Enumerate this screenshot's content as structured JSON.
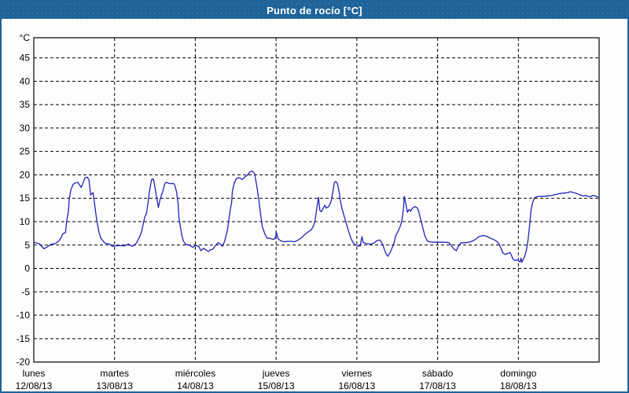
{
  "window": {
    "title": "Punto de rocío [°C]"
  },
  "colors": {
    "titlebar_bg": "#1e6399",
    "titlebar_text": "#ffffff",
    "frame_border": "#1e6399",
    "plot_border": "#000000",
    "gridline": "#000000",
    "axis_text": "#000000",
    "series_line": "#2222bb",
    "background": "#fdfdfd"
  },
  "chart_data": {
    "type": "line",
    "title": "Punto de rocío [°C]",
    "y_unit_label": "°C",
    "ylim": [
      -20,
      49.3
    ],
    "y_ticks": [
      45,
      40,
      35,
      30,
      25,
      20,
      15,
      10,
      5,
      0,
      -5,
      -10,
      -15,
      -20
    ],
    "x_range_hours": [
      0,
      168
    ],
    "x_day_width_hours": 24,
    "grid": "dashed",
    "legend_position": "none",
    "days": [
      {
        "name": "lunes",
        "date": "12/08/13"
      },
      {
        "name": "martes",
        "date": "13/08/13"
      },
      {
        "name": "miércoles",
        "date": "14/08/13"
      },
      {
        "name": "jueves",
        "date": "15/08/13"
      },
      {
        "name": "viernes",
        "date": "16/08/13"
      },
      {
        "name": "sábado",
        "date": "17/08/13"
      },
      {
        "name": "domingo",
        "date": "18/08/13"
      }
    ],
    "series": [
      {
        "name": "Punto de rocío",
        "color": "#2222bb",
        "points": [
          [
            0,
            5.6
          ],
          [
            1.6,
            5.3
          ],
          [
            3,
            4.2
          ],
          [
            4,
            4.6
          ],
          [
            5.2,
            5.2
          ],
          [
            6.3,
            5.3
          ],
          [
            7.5,
            5.9
          ],
          [
            8.2,
            6.7
          ],
          [
            8.7,
            7.5
          ],
          [
            9.4,
            7.6
          ],
          [
            9.8,
            10.2
          ],
          [
            10.3,
            12.3
          ],
          [
            10.5,
            14.5
          ],
          [
            11,
            16.8
          ],
          [
            11.7,
            18
          ],
          [
            12.4,
            18.3
          ],
          [
            13.1,
            18.4
          ],
          [
            14.1,
            17.3
          ],
          [
            14.8,
            18.6
          ],
          [
            15.2,
            19.4
          ],
          [
            15.9,
            19.5
          ],
          [
            16.4,
            18.9
          ],
          [
            16.9,
            15.7
          ],
          [
            17.6,
            16.2
          ],
          [
            18.3,
            12.5
          ],
          [
            18.7,
            10.3
          ],
          [
            19.4,
            7.7
          ],
          [
            19.9,
            6.5
          ],
          [
            21.1,
            5.4
          ],
          [
            22.5,
            5.2
          ],
          [
            23.4,
            4.7
          ],
          [
            24.1,
            4.8
          ],
          [
            25.5,
            4.9
          ],
          [
            26.9,
            4.8
          ],
          [
            28.1,
            5.2
          ],
          [
            29.3,
            4.7
          ],
          [
            30.5,
            5.4
          ],
          [
            31.6,
            7
          ],
          [
            32.1,
            8.1
          ],
          [
            32.6,
            9.8
          ],
          [
            33,
            11
          ],
          [
            33.5,
            11.8
          ],
          [
            34,
            14.4
          ],
          [
            34.4,
            16.6
          ],
          [
            34.9,
            18.6
          ],
          [
            35.1,
            19.1
          ],
          [
            35.6,
            19
          ],
          [
            36.1,
            16.9
          ],
          [
            36.6,
            14.9
          ],
          [
            37,
            13
          ],
          [
            37.5,
            14.7
          ],
          [
            38.4,
            16.6
          ],
          [
            38.9,
            18.1
          ],
          [
            39.4,
            18.4
          ],
          [
            40.1,
            18.2
          ],
          [
            40.8,
            18.1
          ],
          [
            41.5,
            18.2
          ],
          [
            41.9,
            17.8
          ],
          [
            42.4,
            16.4
          ],
          [
            42.9,
            13.8
          ],
          [
            43.1,
            11
          ],
          [
            43.6,
            8.7
          ],
          [
            44,
            7
          ],
          [
            44.5,
            5.8
          ],
          [
            45.2,
            5.1
          ],
          [
            46.2,
            5
          ],
          [
            47.3,
            4.5
          ],
          [
            48,
            4.9
          ],
          [
            49,
            4.7
          ],
          [
            49.7,
            3.8
          ],
          [
            50.4,
            4.3
          ],
          [
            51.1,
            4
          ],
          [
            51.8,
            3.6
          ],
          [
            52.5,
            4
          ],
          [
            53.2,
            4.1
          ],
          [
            54.1,
            5
          ],
          [
            54.8,
            5.5
          ],
          [
            55.5,
            5.2
          ],
          [
            56,
            4.7
          ],
          [
            56.7,
            5.8
          ],
          [
            57.2,
            7.2
          ],
          [
            57.6,
            8.4
          ],
          [
            57.9,
            10.1
          ],
          [
            58.3,
            12.2
          ],
          [
            58.8,
            14.1
          ],
          [
            59,
            16.4
          ],
          [
            59.5,
            18.1
          ],
          [
            60.2,
            19.2
          ],
          [
            61.1,
            19.4
          ],
          [
            61.9,
            19
          ],
          [
            62.6,
            19.5
          ],
          [
            63.3,
            19.8
          ],
          [
            64.2,
            20.6
          ],
          [
            64.9,
            20.8
          ],
          [
            65.6,
            20.3
          ],
          [
            66.3,
            17.5
          ],
          [
            67,
            14
          ],
          [
            67.5,
            11
          ],
          [
            67.9,
            9
          ],
          [
            68.6,
            7.5
          ],
          [
            69.3,
            6.5
          ],
          [
            70.3,
            6.4
          ],
          [
            71.2,
            6.2
          ],
          [
            71.7,
            6.4
          ],
          [
            72.1,
            7.7
          ],
          [
            72.6,
            6.3
          ],
          [
            73.4,
            5.9
          ],
          [
            74.4,
            5.7
          ],
          [
            75.4,
            5.8
          ],
          [
            76.5,
            5.8
          ],
          [
            77.5,
            5.7
          ],
          [
            78.4,
            6
          ],
          [
            79.5,
            6.5
          ],
          [
            80.6,
            7.3
          ],
          [
            81.5,
            7.8
          ],
          [
            82.5,
            8.3
          ],
          [
            83.2,
            9.2
          ],
          [
            83.6,
            10.4
          ],
          [
            84.1,
            12.8
          ],
          [
            84.6,
            15.2
          ],
          [
            85,
            12.4
          ],
          [
            85.5,
            12.1
          ],
          [
            86,
            12.9
          ],
          [
            86.5,
            13.5
          ],
          [
            86.9,
            12.9
          ],
          [
            87.6,
            13.2
          ],
          [
            88.3,
            14.2
          ],
          [
            88.8,
            16
          ],
          [
            89.3,
            18.3
          ],
          [
            89.7,
            18.6
          ],
          [
            90.2,
            18.2
          ],
          [
            90.7,
            16.5
          ],
          [
            91.1,
            14.5
          ],
          [
            91.6,
            12.8
          ],
          [
            92.3,
            11
          ],
          [
            93,
            9.3
          ],
          [
            93.5,
            8
          ],
          [
            94.2,
            6.5
          ],
          [
            94.9,
            5.5
          ],
          [
            95.6,
            5
          ],
          [
            96.3,
            4.8
          ],
          [
            97,
            4.8
          ],
          [
            97.5,
            6.8
          ],
          [
            97.9,
            5.5
          ],
          [
            98.9,
            5.3
          ],
          [
            100,
            5.2
          ],
          [
            101,
            5.4
          ],
          [
            101.9,
            5.9
          ],
          [
            102.8,
            6.1
          ],
          [
            103.5,
            5.4
          ],
          [
            104.2,
            4
          ],
          [
            104.7,
            3.1
          ],
          [
            105.2,
            2.6
          ],
          [
            105.9,
            3.4
          ],
          [
            106.6,
            4.6
          ],
          [
            107.1,
            5.6
          ],
          [
            107.5,
            6.9
          ],
          [
            108.2,
            7.9
          ],
          [
            108.9,
            9
          ],
          [
            109.4,
            10.2
          ],
          [
            109.9,
            13
          ],
          [
            110.1,
            15.4
          ],
          [
            110.6,
            13.7
          ],
          [
            111,
            12
          ],
          [
            111.5,
            12.6
          ],
          [
            112,
            12.2
          ],
          [
            112.4,
            12.8
          ],
          [
            113.2,
            13.2
          ],
          [
            113.9,
            13
          ],
          [
            114.3,
            12.4
          ],
          [
            114.8,
            11
          ],
          [
            115.3,
            9.6
          ],
          [
            115.7,
            8.4
          ],
          [
            116.2,
            7
          ],
          [
            116.9,
            5.9
          ],
          [
            117.6,
            5.7
          ],
          [
            118.8,
            5.6
          ],
          [
            119.9,
            5.6
          ],
          [
            121.1,
            5.6
          ],
          [
            122.3,
            5.6
          ],
          [
            123.4,
            5.5
          ],
          [
            124.2,
            4.8
          ],
          [
            124.9,
            4.1
          ],
          [
            125.6,
            3.8
          ],
          [
            126.3,
            4.9
          ],
          [
            127,
            5.5
          ],
          [
            128.1,
            5.5
          ],
          [
            129.3,
            5.6
          ],
          [
            130.5,
            5.9
          ],
          [
            131.4,
            6.3
          ],
          [
            132.3,
            6.8
          ],
          [
            133.3,
            7
          ],
          [
            134,
            7
          ],
          [
            134.7,
            6.8
          ],
          [
            135.6,
            6.5
          ],
          [
            136.6,
            6.2
          ],
          [
            137.5,
            5.8
          ],
          [
            138.2,
            5.3
          ],
          [
            138.9,
            4.2
          ],
          [
            139.4,
            3.3
          ],
          [
            140.1,
            3
          ],
          [
            140.8,
            3.2
          ],
          [
            141.5,
            3.4
          ],
          [
            142,
            2.7
          ],
          [
            142.4,
            2
          ],
          [
            143.1,
            1.7
          ],
          [
            143.8,
            1.8
          ],
          [
            144.3,
            1.5
          ],
          [
            144.5,
            1.4
          ],
          [
            144.8,
            2.2
          ],
          [
            145,
            1.3
          ],
          [
            145.5,
            2
          ],
          [
            145.9,
            2.6
          ],
          [
            146.4,
            4
          ],
          [
            146.9,
            6.2
          ],
          [
            147.4,
            9.5
          ],
          [
            147.8,
            12.5
          ],
          [
            148.3,
            14.2
          ],
          [
            148.8,
            15.1
          ],
          [
            149.5,
            15.3
          ],
          [
            150.4,
            15.4
          ],
          [
            151.6,
            15.4
          ],
          [
            152.7,
            15.5
          ],
          [
            153.9,
            15.6
          ],
          [
            155.1,
            15.8
          ],
          [
            156.3,
            16
          ],
          [
            157.4,
            16.1
          ],
          [
            158.6,
            16.2
          ],
          [
            159.5,
            16.4
          ],
          [
            160.5,
            16.2
          ],
          [
            161.4,
            16
          ],
          [
            162.3,
            15.7
          ],
          [
            163.3,
            15.5
          ],
          [
            164,
            15.6
          ],
          [
            164.7,
            15.4
          ],
          [
            165.4,
            15.3
          ],
          [
            166.1,
            15.6
          ],
          [
            166.8,
            15.5
          ],
          [
            167.5,
            15.3
          ],
          [
            168,
            15.2
          ]
        ]
      }
    ]
  }
}
